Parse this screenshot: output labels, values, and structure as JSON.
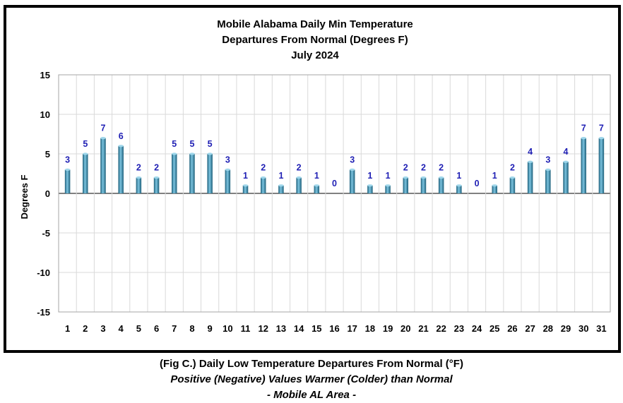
{
  "chart_data": {
    "type": "bar",
    "title_lines": [
      "Mobile Alabama Daily Min Temperature",
      "Departures From Normal (Degrees F)",
      "July 2024"
    ],
    "xlabel": "",
    "ylabel": "Degrees F",
    "ylim": [
      -15,
      15
    ],
    "yticks": [
      -15,
      -10,
      -5,
      0,
      5,
      10,
      15
    ],
    "grid": true,
    "categories": [
      "1",
      "2",
      "3",
      "4",
      "5",
      "6",
      "7",
      "8",
      "9",
      "10",
      "11",
      "12",
      "13",
      "14",
      "15",
      "16",
      "17",
      "18",
      "19",
      "20",
      "21",
      "22",
      "23",
      "24",
      "25",
      "26",
      "27",
      "28",
      "29",
      "30",
      "31"
    ],
    "values": [
      3,
      5,
      7,
      6,
      2,
      2,
      5,
      5,
      5,
      3,
      1,
      2,
      1,
      2,
      1,
      0,
      3,
      1,
      1,
      2,
      2,
      2,
      1,
      0,
      1,
      2,
      4,
      3,
      4,
      7,
      7
    ],
    "bar_color": "#3f8fb0",
    "label_color": "#1f1fb4"
  },
  "caption": {
    "line1": "(Fig C.) Daily Low Temperature Departures From Normal (°F)",
    "line2": "Positive (Negative) Values Warmer (Colder) than Normal",
    "line3": "- Mobile AL Area -"
  }
}
